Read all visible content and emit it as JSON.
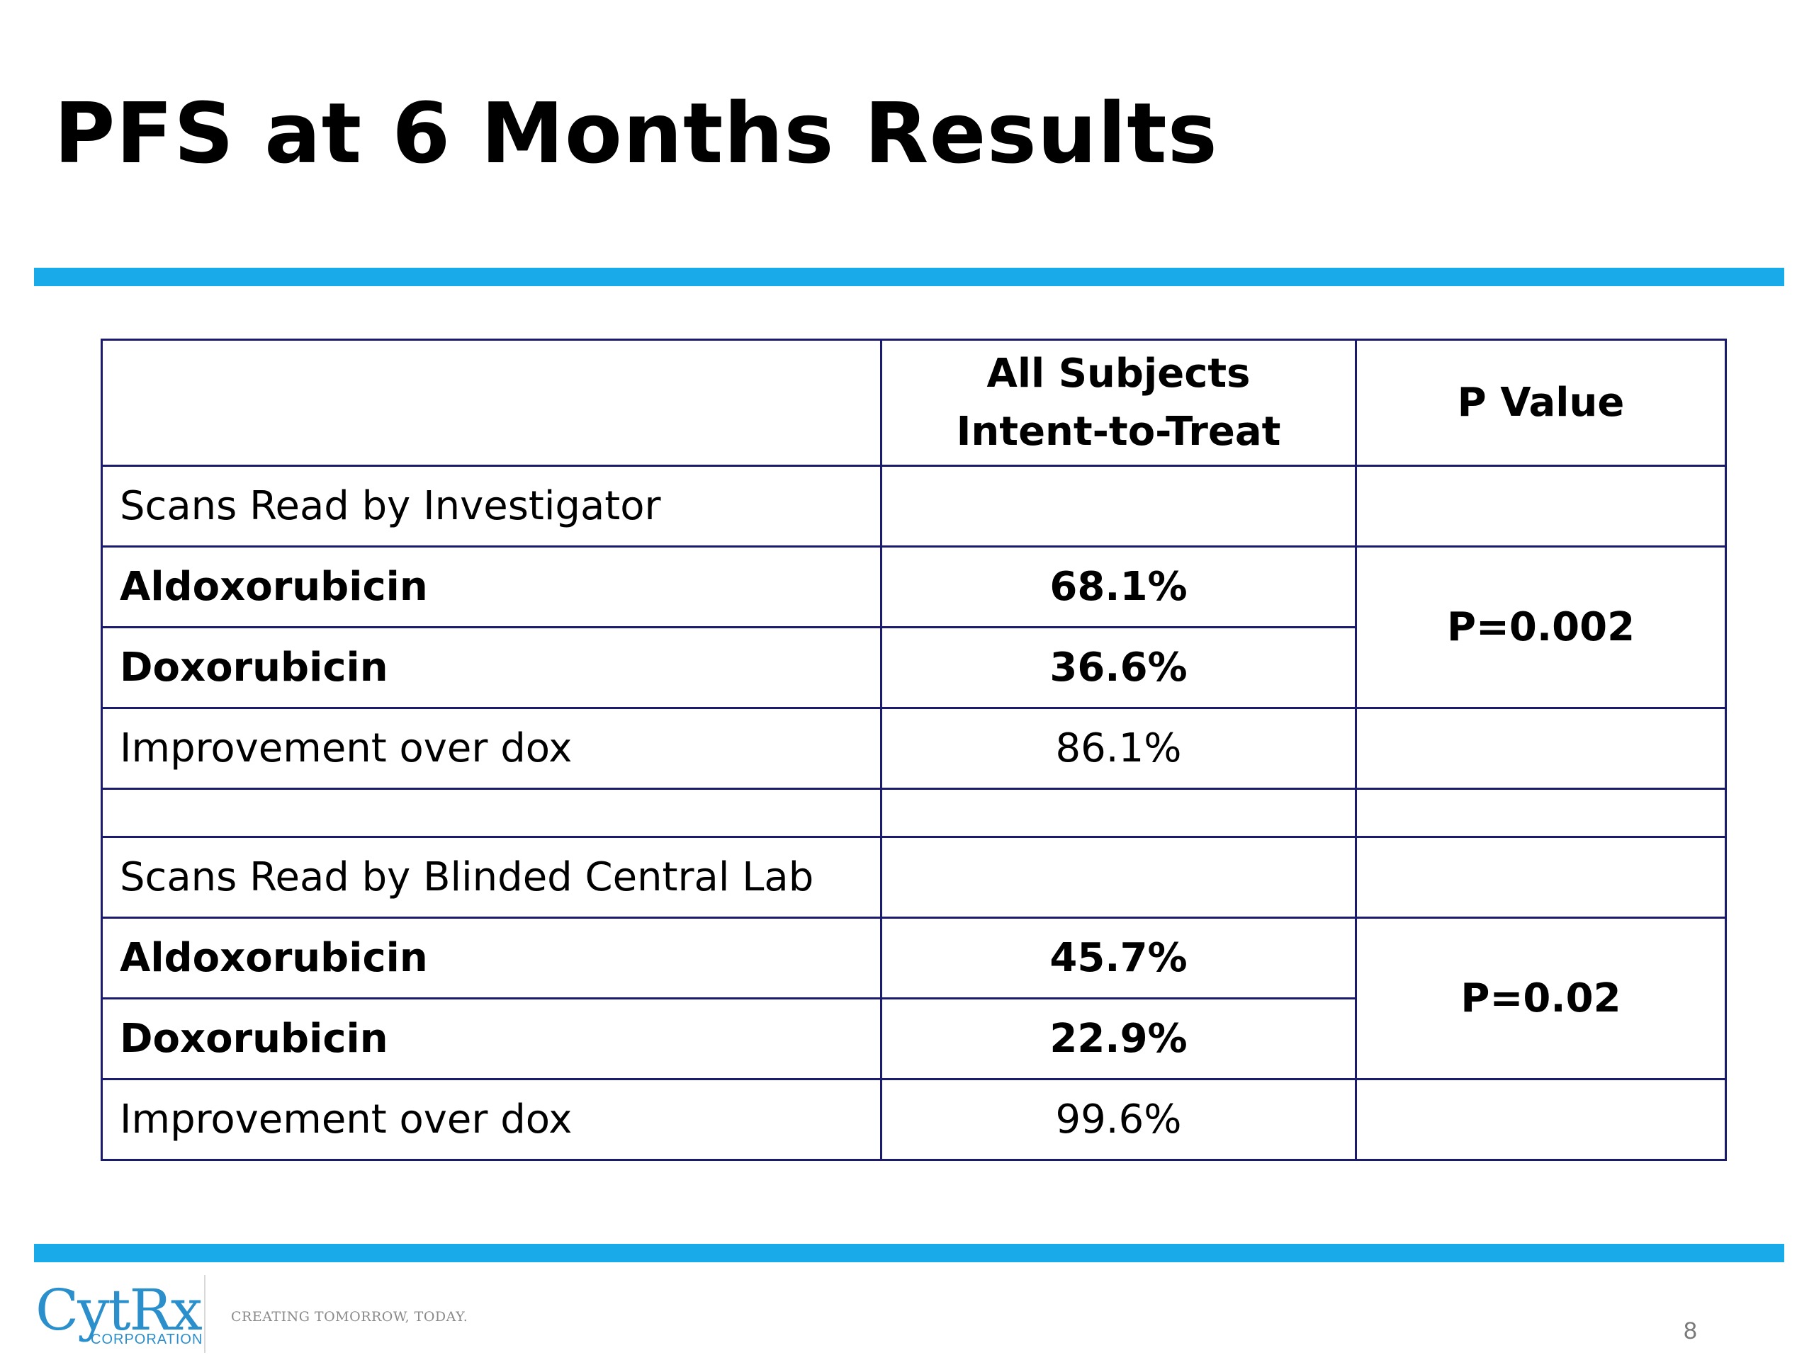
{
  "slide": {
    "title": "PFS at 6 Months Results",
    "page_number": "8"
  },
  "colors": {
    "accent_rule": "#19abe9",
    "table_border": "#1a1a6e",
    "logo": "#2b8fcc"
  },
  "table": {
    "header": {
      "col2_line1": "All Subjects",
      "col2_line2": "Intent-to-Treat",
      "col3": "P Value"
    },
    "investigator": {
      "section_label": "Scans Read by Investigator",
      "drug1_label": "Aldoxorubicin",
      "drug1_value": "68.1%",
      "drug2_label": "Doxorubicin",
      "drug2_value": "36.6%",
      "p_value": "P=0.002",
      "improvement_label": "Improvement over dox",
      "improvement_value": "86.1%"
    },
    "central_lab": {
      "section_label": "Scans Read by Blinded Central Lab",
      "drug1_label": "Aldoxorubicin",
      "drug1_value": "45.7%",
      "drug2_label": "Doxorubicin",
      "drug2_value": "22.9%",
      "p_value": "P=0.02",
      "improvement_label": "Improvement over dox",
      "improvement_value": "99.6%"
    }
  },
  "footer": {
    "logo_text": "CytRx",
    "logo_subtext": "CORPORATION",
    "tagline": "CREATING TOMORROW, TODAY."
  }
}
